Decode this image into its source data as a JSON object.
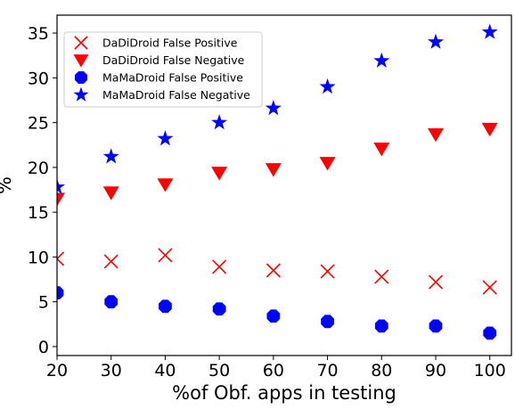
{
  "chart_data": {
    "type": "scatter",
    "title": "",
    "xlabel": "%of Obf. apps in testing",
    "ylabel": "%",
    "xlim": [
      20,
      104
    ],
    "ylim": [
      -1,
      37
    ],
    "xticks": [
      20,
      30,
      40,
      50,
      60,
      70,
      80,
      90,
      100
    ],
    "yticks": [
      0,
      5,
      10,
      15,
      20,
      25,
      30,
      35
    ],
    "grid": false,
    "legend_position": "top-left",
    "x": [
      20,
      30,
      40,
      50,
      60,
      70,
      80,
      90,
      100
    ],
    "series": [
      {
        "name": "DaDiDroid False Positive",
        "marker": "x",
        "color": "#ff0000",
        "values": [
          9.8,
          9.5,
          10.2,
          8.9,
          8.5,
          8.4,
          7.8,
          7.2,
          6.6
        ]
      },
      {
        "name": "DaDiDroid False Negative",
        "marker": "triangle-down",
        "color": "#ff0000",
        "values": [
          16.5,
          17.2,
          18.1,
          19.4,
          19.8,
          20.5,
          22.1,
          23.7,
          24.3
        ]
      },
      {
        "name": "MaMaDroid False Positive",
        "marker": "octagon",
        "color": "#0000ff",
        "values": [
          6.0,
          5.0,
          4.5,
          4.2,
          3.4,
          2.8,
          2.3,
          2.3,
          1.5
        ]
      },
      {
        "name": "MaMaDroid False Negative",
        "marker": "star",
        "color": "#0000ff",
        "values": [
          17.8,
          21.2,
          23.2,
          25.0,
          26.6,
          29.0,
          31.9,
          34.0,
          35.1
        ]
      }
    ]
  }
}
